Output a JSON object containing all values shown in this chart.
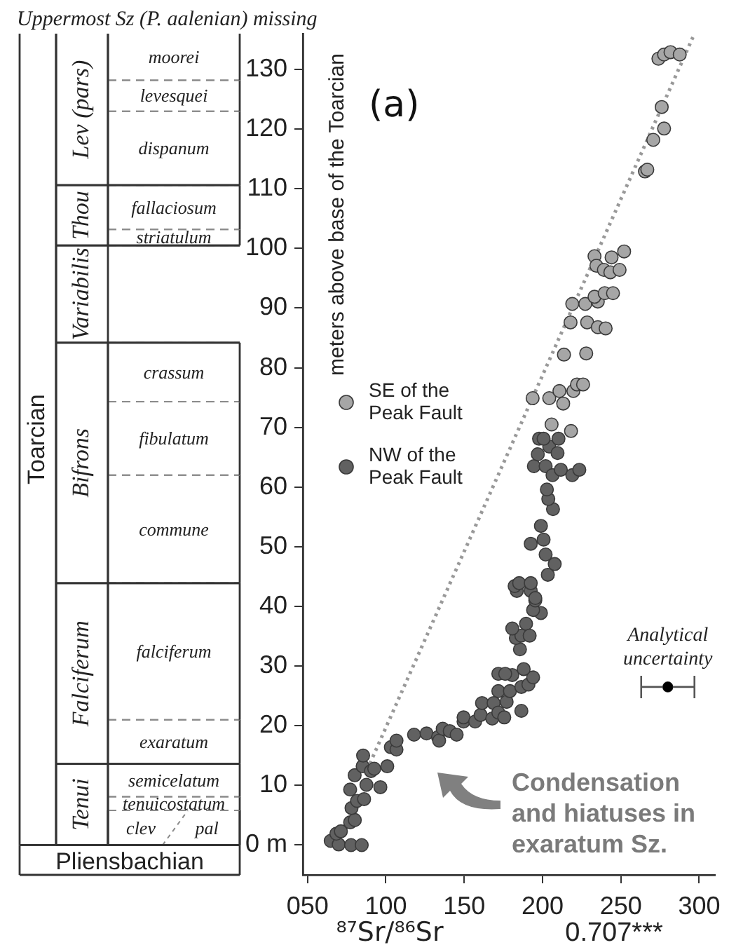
{
  "chart_data": {
    "type": "scatter",
    "title": "(a)",
    "xlabel": "⁸⁷Sr/⁸⁶Sr",
    "ylabel": "meters above base of the Toarcian",
    "xlim": [
      47,
      310
    ],
    "xticks": [
      {
        "value": 50,
        "label": "050"
      },
      100,
      150,
      200,
      250,
      300
    ],
    "ylim": [
      -5,
      136
    ],
    "yticks": [
      {
        "value": 0,
        "label": "0 m"
      },
      10,
      20,
      30,
      40,
      50,
      60,
      70,
      80,
      90,
      100,
      110,
      120,
      130
    ],
    "grid": false,
    "legend": "left",
    "marker": "circle",
    "series": [
      {
        "name": "SE of the Peak Fault",
        "color": "#a6a6a6",
        "x": [
          205.8,
          218.2,
          193.7,
          204.3,
          210.8,
          213.2,
          219.7,
          222,
          225.9,
          213.7,
          227.9,
          217.9,
          228.5,
          235.3,
          240.3,
          219,
          227.3,
          235.3,
          233.2,
          239.7,
          245,
          233.2,
          234.4,
          239.2,
          243.3,
          244.1,
          249.2,
          252.1,
          265.4,
          266.9,
          270.7,
          277.6,
          276.1,
          274,
          277.6,
          281.7,
          287.6
        ],
        "values": [
          70.5,
          69.4,
          74.9,
          74.9,
          76.1,
          74,
          76.1,
          77.2,
          77.2,
          82.2,
          82.4,
          87.6,
          87.6,
          86.8,
          86.6,
          90.7,
          90.7,
          91.1,
          91.9,
          92.5,
          92.5,
          98.7,
          97.1,
          96.4,
          96,
          98.5,
          96.4,
          99.5,
          112.9,
          113.2,
          118.2,
          120.1,
          123.7,
          131.8,
          132.5,
          132.9,
          132.5
        ]
      },
      {
        "name": "NW of the Peak Fault",
        "color": "#616161",
        "x": [
          64.8,
          69.9,
          68.4,
          71.3,
          77.8,
          84.6,
          77.2,
          80.2,
          78.1,
          81.6,
          77.2,
          86.1,
          87.6,
          80.1,
          85.2,
          85.5,
          90.5,
          92.6,
          96.5,
          100.9,
          103.2,
          106.8,
          106.8,
          118,
          126,
          133.3,
          134,
          136.3,
          140.8,
          145.2,
          149.6,
          149.6,
          157,
          160.5,
          161.4,
          168.8,
          167.9,
          171.8,
          175.6,
          171.8,
          177.1,
          179.2,
          180.7,
          171.8,
          176.2,
          186.5,
          186.5,
          191,
          194,
          188,
          185.6,
          183,
          186.5,
          180.7,
          189.5,
          191.8,
          199,
          194,
          195.4,
          183.6,
          192.5,
          182.2,
          185.1,
          192.5,
          195.4,
          203.4,
          207.8,
          202,
          192.5,
          200.7,
          199,
          206.7,
          203.7,
          202.8,
          194.5,
          202,
          206.4,
          211.7,
          219,
          223.5,
          197,
          204.3,
          209.6,
          197.8,
          200.7,
          210.2
        ],
        "values": [
          0.7,
          0.1,
          1.9,
          2.3,
          0,
          0,
          3.8,
          4.2,
          6.2,
          7.4,
          9.3,
          7.7,
          10.1,
          11.7,
          13.2,
          15,
          12.4,
          12.8,
          9.7,
          13.2,
          16.4,
          16,
          17.5,
          18.5,
          18.7,
          18.1,
          17.5,
          19.5,
          19.1,
          18.5,
          20.7,
          21.4,
          20.7,
          21.8,
          23.8,
          23.8,
          21.2,
          22.2,
          21.4,
          25.8,
          24,
          25.8,
          28.5,
          28.7,
          28.7,
          22.5,
          26.5,
          26.9,
          28.1,
          29.5,
          32.8,
          34.7,
          35.1,
          36.3,
          37.1,
          35.1,
          38.9,
          39.4,
          41,
          42.6,
          42.6,
          43.4,
          43.9,
          43.9,
          41.4,
          45.3,
          47.1,
          48.7,
          50.5,
          51.2,
          53.5,
          56.3,
          58,
          59.6,
          63.5,
          63.5,
          62,
          62.9,
          62,
          62.9,
          65.5,
          66.8,
          65.7,
          68.1,
          68.1,
          68.1
        ]
      },
      {
        "type": "line",
        "color": "#999999",
        "line_style": "dotted",
        "marker": "none",
        "x": [
          88,
          296
        ],
        "values": [
          12.6,
          135.4
        ]
      },
      {
        "color": "#000000",
        "x": [
          280
        ],
        "values": [
          26.5
        ],
        "xerrors": [
          17
        ]
      }
    ],
    "annotations": [
      "Condensation and hiatuses in exaratum Sz.",
      {
        "text": "Analytical uncertainty",
        "x": 280,
        "y": 26.5
      },
      "0.707***",
      "Uppermost Sz (P. aalenian) missing",
      "Toarcian",
      "Pliensbachian",
      "Tenui",
      "Falciferum",
      "Bifrons",
      "Variabilis",
      "Thou",
      "Lev (pars)",
      "clev",
      "pal",
      "tenuicostatum",
      "semicelatum",
      "exaratum",
      "falciferum",
      "commune",
      "fibulatum",
      "crassum",
      "striatulum",
      "fallaciosum",
      "dispanum",
      "levesquei",
      "moorei"
    ]
  }
}
